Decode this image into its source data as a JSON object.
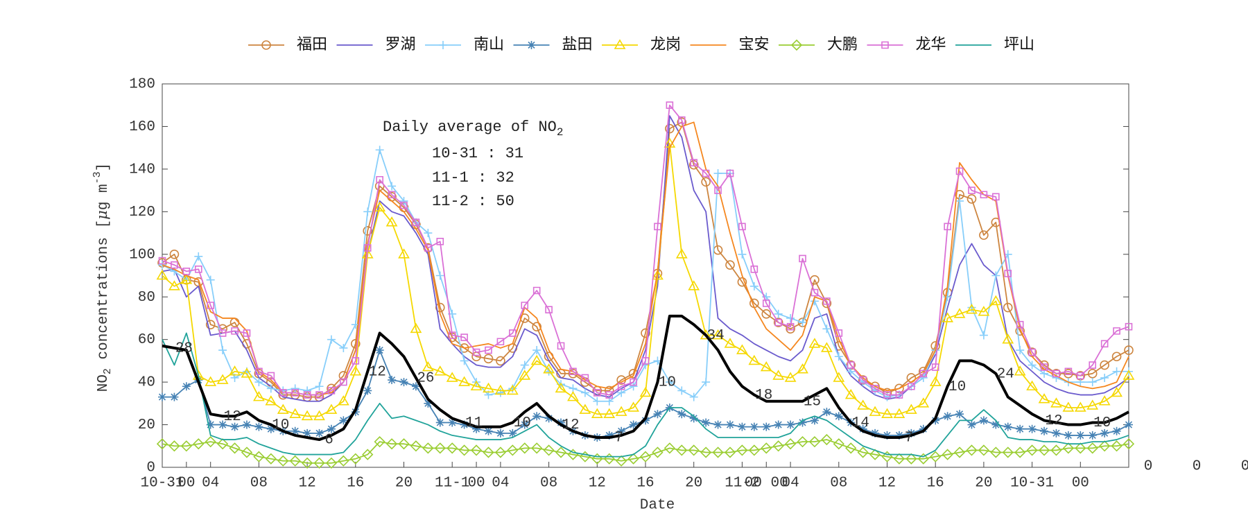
{
  "chart_data": {
    "type": "line",
    "xlabel": "Date",
    "ylabel": [
      "NO",
      "2",
      " concentrations [",
      "μ",
      "g m",
      "-3",
      "]"
    ],
    "xlim": [
      0,
      80
    ],
    "ylim": [
      0,
      180
    ],
    "yticks": [
      0,
      20,
      40,
      60,
      80,
      100,
      120,
      140,
      160,
      180
    ],
    "xticks": [
      {
        "value": 0,
        "label": "10-31"
      },
      {
        "value": 2,
        "label": "00"
      },
      {
        "value": 4,
        "label": "04"
      },
      {
        "value": 8,
        "label": "08"
      },
      {
        "value": 12,
        "label": "12"
      },
      {
        "value": 16,
        "label": "16"
      },
      {
        "value": 20,
        "label": "20"
      },
      {
        "value": 24,
        "label": "11-1"
      },
      {
        "value": 26,
        "label": "00"
      },
      {
        "value": 28,
        "label": "04"
      },
      {
        "value": 32,
        "label": "08"
      },
      {
        "value": 36,
        "label": "12"
      },
      {
        "value": 40,
        "label": "16"
      },
      {
        "value": 44,
        "label": "20"
      },
      {
        "value": 48,
        "label": "11-2"
      },
      {
        "value": 50,
        "label": "00 00"
      },
      {
        "value": 52,
        "label": "04"
      },
      {
        "value": 56,
        "label": "08"
      },
      {
        "value": 60,
        "label": "12"
      },
      {
        "value": 64,
        "label": "16"
      },
      {
        "value": 68,
        "label": "20"
      },
      {
        "value": 72,
        "label": "10-31"
      },
      {
        "value": 76,
        "label": "00"
      }
    ],
    "trailing_labels": [
      "0",
      "0",
      "0"
    ],
    "x": [
      0,
      1,
      2,
      3,
      4,
      5,
      6,
      7,
      8,
      9,
      10,
      11,
      12,
      13,
      14,
      15,
      16,
      17,
      18,
      19,
      20,
      21,
      22,
      23,
      24,
      25,
      26,
      27,
      28,
      29,
      30,
      31,
      32,
      33,
      34,
      35,
      36,
      37,
      38,
      39,
      40,
      41,
      42,
      43,
      44,
      45,
      46,
      47,
      48,
      49,
      50,
      51,
      52,
      53,
      54,
      55,
      56,
      57,
      58,
      59,
      60,
      61,
      62,
      63,
      64,
      65,
      66,
      67,
      68,
      69,
      70,
      71,
      72,
      73,
      74,
      75,
      76,
      77,
      78,
      79,
      80
    ],
    "series": [
      {
        "name": "福田",
        "color": "#cd853f",
        "marker": "circle",
        "values": [
          96,
          100,
          88,
          87,
          67,
          65,
          68,
          58,
          44,
          40,
          34,
          34,
          33,
          33,
          37,
          43,
          58,
          111,
          132,
          127,
          122,
          114,
          103,
          75,
          61,
          56,
          52,
          51,
          50,
          56,
          70,
          66,
          52,
          44,
          44,
          40,
          36,
          36,
          41,
          44,
          63,
          91,
          159,
          162,
          142,
          134,
          102,
          95,
          87,
          77,
          72,
          68,
          65,
          68,
          88,
          77,
          57,
          48,
          41,
          38,
          35,
          37,
          42,
          45,
          57,
          82,
          128,
          126,
          109,
          115,
          75,
          64,
          54,
          48,
          44,
          44,
          43,
          44,
          48,
          52,
          55
        ]
      },
      {
        "name": "罗湖",
        "color": "#6a5acd",
        "marker": "none",
        "values": [
          92,
          93,
          80,
          85,
          62,
          63,
          64,
          55,
          42,
          38,
          33,
          32,
          31,
          31,
          34,
          40,
          55,
          100,
          125,
          120,
          118,
          110,
          100,
          65,
          58,
          52,
          48,
          47,
          47,
          52,
          65,
          62,
          50,
          42,
          41,
          37,
          34,
          33,
          37,
          40,
          55,
          85,
          165,
          155,
          130,
          120,
          70,
          65,
          62,
          58,
          55,
          52,
          50,
          55,
          70,
          72,
          52,
          43,
          38,
          34,
          32,
          33,
          38,
          42,
          53,
          75,
          95,
          105,
          95,
          90,
          60,
          50,
          45,
          40,
          37,
          35,
          34,
          34,
          35,
          38,
          42
        ]
      },
      {
        "name": "南山",
        "color": "#87cefa",
        "marker": "plus",
        "values": [
          95,
          92,
          88,
          99,
          88,
          55,
          42,
          45,
          40,
          37,
          36,
          37,
          36,
          38,
          60,
          56,
          67,
          120,
          149,
          132,
          125,
          115,
          110,
          90,
          72,
          50,
          40,
          34,
          35,
          37,
          48,
          55,
          45,
          39,
          37,
          35,
          31,
          31,
          35,
          38,
          48,
          50,
          40,
          36,
          33,
          40,
          138,
          138,
          100,
          85,
          80,
          72,
          70,
          68,
          78,
          65,
          52,
          45,
          40,
          36,
          33,
          34,
          38,
          42,
          55,
          80,
          125,
          75,
          62,
          90,
          100,
          55,
          48,
          44,
          42,
          40,
          40,
          40,
          42,
          45,
          45
        ]
      },
      {
        "name": "盐田",
        "color": "#4682b4",
        "marker": "star",
        "values": [
          33,
          33,
          38,
          41,
          20,
          20,
          19,
          20,
          19,
          18,
          17,
          17,
          16,
          16,
          18,
          22,
          26,
          36,
          55,
          41,
          40,
          38,
          30,
          21,
          21,
          20,
          18,
          17,
          16,
          16,
          20,
          24,
          23,
          21,
          17,
          15,
          14,
          15,
          17,
          20,
          22,
          25,
          28,
          25,
          23,
          21,
          20,
          20,
          19,
          19,
          19,
          20,
          20,
          21,
          22,
          26,
          24,
          21,
          18,
          16,
          15,
          15,
          16,
          18,
          22,
          24,
          25,
          20,
          22,
          20,
          19,
          18,
          18,
          17,
          16,
          15,
          15,
          15,
          16,
          17,
          20
        ]
      },
      {
        "name": "龙岗",
        "color": "#f5d800",
        "marker": "triangle",
        "values": [
          90,
          85,
          88,
          43,
          40,
          41,
          45,
          44,
          33,
          31,
          27,
          25,
          24,
          24,
          27,
          31,
          45,
          100,
          122,
          115,
          100,
          65,
          47,
          45,
          42,
          40,
          38,
          37,
          36,
          36,
          43,
          50,
          46,
          37,
          33,
          27,
          25,
          25,
          26,
          28,
          35,
          90,
          152,
          100,
          85,
          62,
          62,
          58,
          55,
          50,
          47,
          43,
          42,
          46,
          58,
          56,
          42,
          34,
          29,
          26,
          25,
          25,
          27,
          30,
          40,
          70,
          72,
          74,
          73,
          78,
          60,
          45,
          38,
          32,
          30,
          28,
          28,
          29,
          31,
          35,
          43
        ]
      },
      {
        "name": "宝安",
        "color": "#f5871f",
        "marker": "none",
        "values": [
          95,
          93,
          90,
          88,
          73,
          70,
          70,
          64,
          45,
          41,
          35,
          35,
          34,
          34,
          35,
          40,
          55,
          105,
          130,
          125,
          120,
          112,
          102,
          72,
          58,
          56,
          57,
          58,
          56,
          58,
          75,
          70,
          55,
          46,
          45,
          41,
          38,
          37,
          40,
          43,
          58,
          92,
          150,
          160,
          162,
          140,
          132,
          110,
          90,
          75,
          65,
          60,
          55,
          62,
          80,
          78,
          60,
          48,
          42,
          38,
          36,
          37,
          40,
          44,
          55,
          85,
          143,
          135,
          128,
          125,
          90,
          65,
          52,
          46,
          43,
          40,
          38,
          37,
          38,
          40,
          52
        ]
      },
      {
        "name": "大鹏",
        "color": "#9acd32",
        "marker": "diamond",
        "values": [
          11,
          10,
          10,
          11,
          12,
          11,
          9,
          7,
          5,
          4,
          3,
          3,
          2,
          2,
          2,
          3,
          4,
          6,
          12,
          11,
          11,
          10,
          9,
          9,
          9,
          8,
          8,
          7,
          7,
          8,
          9,
          9,
          8,
          7,
          6,
          5,
          4,
          4,
          3,
          4,
          5,
          7,
          9,
          8,
          8,
          7,
          7,
          7,
          8,
          8,
          9,
          10,
          11,
          12,
          12,
          13,
          11,
          9,
          7,
          6,
          5,
          4,
          4,
          4,
          5,
          6,
          7,
          8,
          8,
          7,
          7,
          7,
          8,
          8,
          8,
          9,
          9,
          9,
          10,
          10,
          11
        ]
      },
      {
        "name": "龙华",
        "color": "#da70d6",
        "marker": "square",
        "values": [
          97,
          95,
          92,
          93,
          76,
          63,
          64,
          63,
          45,
          43,
          35,
          35,
          34,
          34,
          36,
          40,
          50,
          103,
          135,
          128,
          123,
          115,
          103,
          106,
          62,
          61,
          54,
          55,
          59,
          63,
          76,
          83,
          74,
          57,
          45,
          42,
          35,
          34,
          38,
          40,
          50,
          113,
          170,
          163,
          143,
          138,
          130,
          138,
          113,
          93,
          77,
          68,
          66,
          98,
          82,
          78,
          63,
          48,
          41,
          37,
          34,
          34,
          38,
          44,
          47,
          113,
          139,
          130,
          128,
          127,
          91,
          67,
          54,
          47,
          44,
          45,
          43,
          48,
          58,
          64,
          66
        ]
      },
      {
        "name": "坪山",
        "color": "#20a39a",
        "marker": "none",
        "values": [
          60,
          48,
          63,
          43,
          15,
          13,
          13,
          14,
          11,
          9,
          7,
          6,
          6,
          6,
          6,
          7,
          13,
          22,
          30,
          23,
          24,
          22,
          20,
          17,
          15,
          14,
          13,
          13,
          13,
          14,
          17,
          20,
          14,
          10,
          7,
          6,
          5,
          5,
          5,
          6,
          10,
          20,
          28,
          28,
          24,
          18,
          14,
          14,
          14,
          14,
          14,
          14,
          16,
          22,
          24,
          22,
          18,
          14,
          10,
          8,
          6,
          6,
          6,
          5,
          8,
          15,
          22,
          22,
          27,
          22,
          14,
          13,
          13,
          12,
          12,
          11,
          11,
          12,
          12,
          13,
          15
        ]
      }
    ],
    "average": {
      "color": "#000000",
      "values": [
        57,
        56,
        55,
        40,
        25,
        24,
        24,
        26,
        22,
        20,
        17,
        15,
        14,
        13,
        15,
        18,
        27,
        45,
        63,
        58,
        52,
        42,
        32,
        27,
        23,
        21,
        19,
        19,
        19,
        21,
        26,
        30,
        24,
        20,
        17,
        15,
        14,
        14,
        15,
        17,
        23,
        40,
        71,
        71,
        67,
        62,
        55,
        45,
        38,
        34,
        31,
        31,
        31,
        31,
        34,
        37,
        28,
        21,
        17,
        15,
        14,
        14,
        15,
        17,
        23,
        38,
        50,
        50,
        48,
        44,
        33,
        29,
        25,
        22,
        21,
        20,
        20,
        21,
        21,
        23,
        26
      ]
    },
    "average_labels": {
      "x": [
        1,
        5,
        9,
        13,
        17,
        21,
        25,
        29,
        33,
        37,
        41,
        45,
        49,
        53,
        57,
        61,
        65,
        69,
        73,
        77
      ],
      "values": [
        28,
        12,
        10,
        6,
        12,
        26,
        11,
        10,
        12,
        7,
        10,
        34,
        18,
        15,
        14,
        7,
        10,
        24,
        12,
        10
      ]
    },
    "annotation": {
      "title": "Daily average of NO",
      "title_sub": "2",
      "lines": [
        "10-31 : 31",
        "11-1 : 32",
        "11-2 : 50"
      ]
    }
  }
}
